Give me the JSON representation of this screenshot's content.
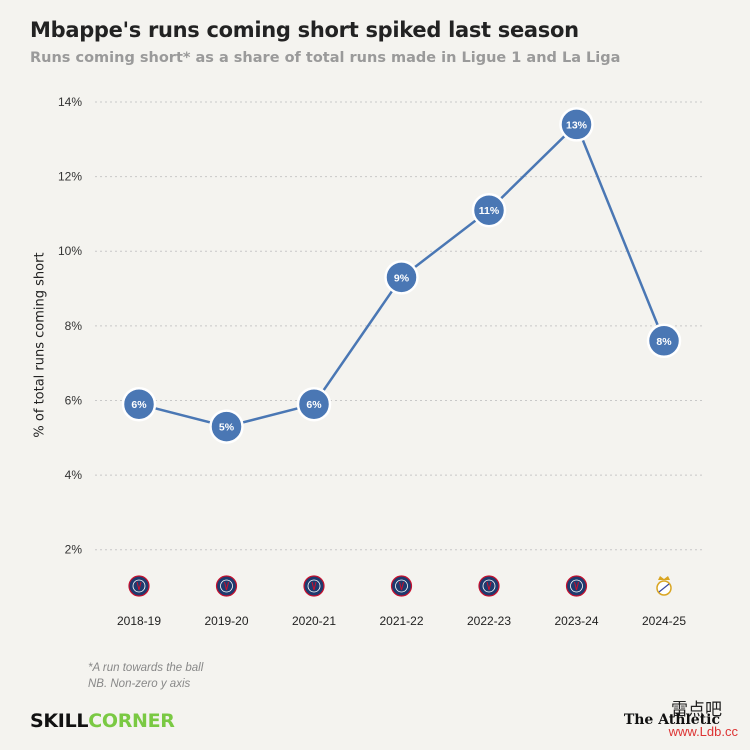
{
  "header": {
    "title": "Mbappe's runs coming short spiked last season",
    "subtitle": "Runs coming short* as a share of total runs made in Ligue 1 and La Liga"
  },
  "chart_data": {
    "type": "line",
    "title": "Mbappe's runs coming short spiked last season",
    "subtitle": "Runs coming short* as a share of total runs made in Ligue 1 and La Liga",
    "xlabel": "",
    "ylabel": "% of total runs coming short",
    "categories": [
      "2018-19",
      "2019-20",
      "2020-21",
      "2021-22",
      "2022-23",
      "2023-24",
      "2024-25"
    ],
    "series": [
      {
        "values": [
          5.9,
          5.3,
          5.9,
          9.3,
          11.1,
          13.4,
          7.6
        ],
        "point_labels": [
          "6%",
          "5%",
          "6%",
          "9%",
          "11%",
          "13%",
          "8%"
        ]
      }
    ],
    "club_icons": [
      "psg-crest",
      "psg-crest",
      "psg-crest",
      "psg-crest",
      "psg-crest",
      "psg-crest",
      "real-madrid-crest"
    ],
    "ylim": [
      1,
      14
    ],
    "yticks": [
      2,
      4,
      6,
      8,
      10,
      12,
      14
    ],
    "ytick_labels": [
      "2%",
      "4%",
      "6%",
      "8%",
      "10%",
      "12%",
      "14%"
    ],
    "grid": true,
    "colors": {
      "line": "#4a77b4",
      "marker": "#4a77b4",
      "marker_border": "#ffffff",
      "grid": "#c8c8c8"
    }
  },
  "footnotes": {
    "note1": "*A run towards the ball",
    "note2": "NB. Non-zero y axis"
  },
  "branding": {
    "skill": "SKILL",
    "corner": "CORNER",
    "athletic": "The Athletic",
    "watermark_cn": "雷点吧",
    "watermark": "www.Ldb.cc"
  }
}
